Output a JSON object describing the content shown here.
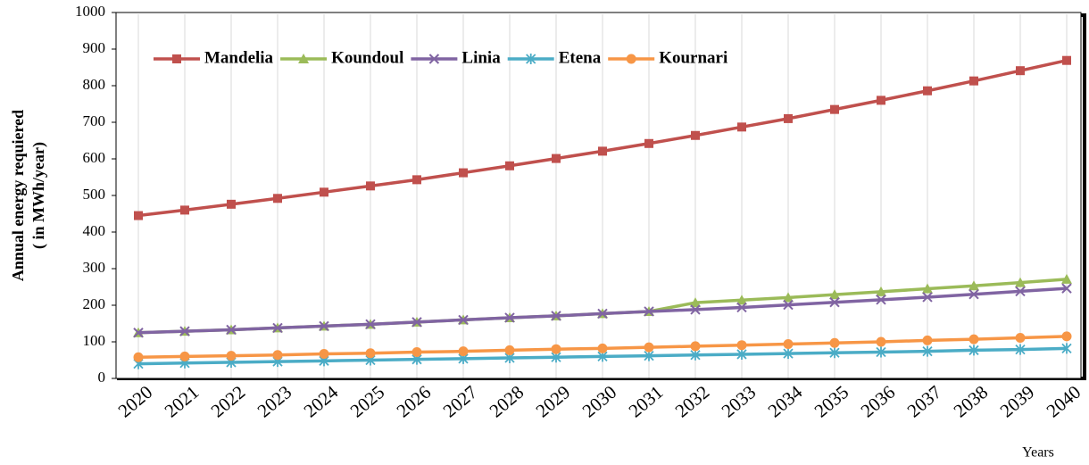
{
  "chart_data": {
    "type": "line",
    "ylabel": [
      "Annual energy requiered",
      "( in  MWh/year)"
    ],
    "xlabel": "Years",
    "categories": [
      "2020",
      "2021",
      "2022",
      "2023",
      "2024",
      "2025",
      "2026",
      "2027",
      "2028",
      "2029",
      "2030",
      "2031",
      "2032",
      "2033",
      "2034",
      "2035",
      "2036",
      "2037",
      "2038",
      "2039",
      "2040"
    ],
    "series": [
      {
        "name": "Mandelia",
        "color": "#c0504d",
        "marker": "square",
        "values": [
          445,
          460,
          476,
          492,
          509,
          526,
          543,
          562,
          581,
          601,
          621,
          642,
          664,
          687,
          710,
          735,
          760,
          786,
          813,
          841,
          869
        ]
      },
      {
        "name": "Koundoul",
        "color": "#9bbb59",
        "marker": "triangle",
        "values": [
          125,
          129,
          133,
          138,
          143,
          148,
          154,
          160,
          166,
          171,
          177,
          183,
          207,
          214,
          221,
          229,
          237,
          245,
          253,
          262,
          271
        ]
      },
      {
        "name": "Linia",
        "color": "#8064a2",
        "marker": "x",
        "values": [
          125,
          129,
          133,
          138,
          143,
          148,
          154,
          160,
          166,
          171,
          177,
          183,
          188,
          194,
          201,
          208,
          215,
          222,
          230,
          238,
          246
        ]
      },
      {
        "name": "Etena",
        "color": "#4bacc6",
        "marker": "asterisk",
        "values": [
          40,
          42,
          44,
          46,
          48,
          50,
          52,
          54,
          56,
          58,
          60,
          62,
          64,
          66,
          68,
          70,
          72,
          74,
          77,
          79,
          82
        ]
      },
      {
        "name": "Kournari",
        "color": "#f79646",
        "marker": "circle",
        "values": [
          58,
          60,
          62,
          64,
          67,
          69,
          72,
          74,
          77,
          80,
          82,
          85,
          88,
          91,
          94,
          97,
          100,
          104,
          107,
          111,
          115
        ]
      }
    ],
    "ylim": [
      0,
      1000
    ],
    "yticks": [
      0,
      100,
      200,
      300,
      400,
      500,
      600,
      700,
      800,
      900,
      1000
    ],
    "grid": "x",
    "legend": "top"
  }
}
